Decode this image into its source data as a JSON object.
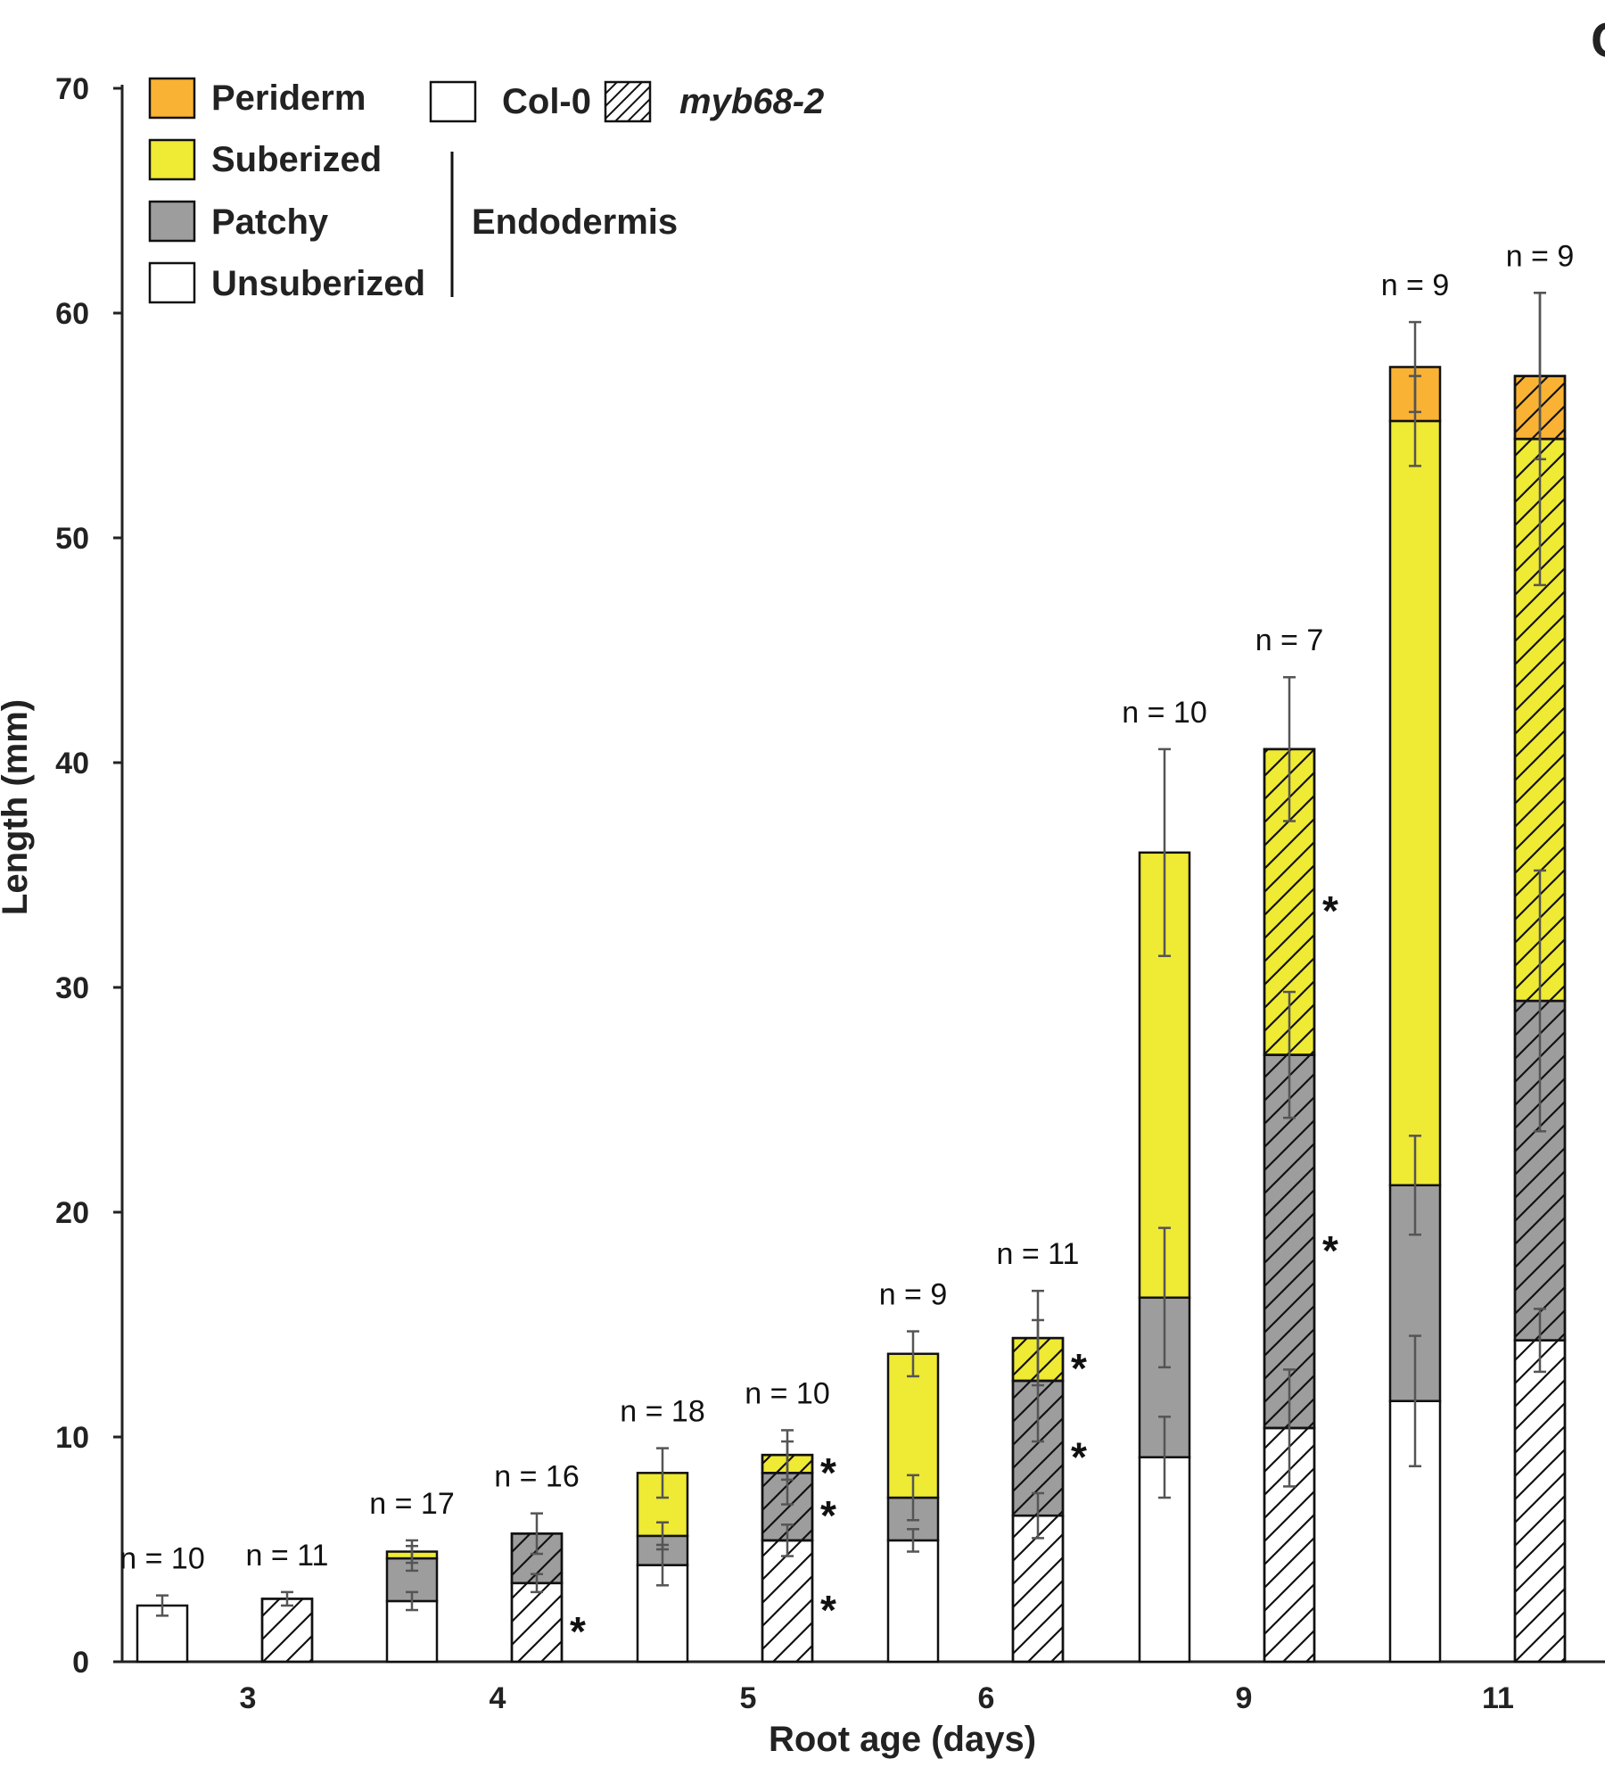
{
  "panel_label": "C",
  "colors": {
    "periderm": "#F9B233",
    "suberized": "#EFEA33",
    "patchy": "#9D9D9D",
    "unsuberized": "#FFFFFF",
    "stroke": "#111111",
    "errorbar": "#555555"
  },
  "legend": {
    "periderm": "Periderm",
    "suberized": "Suberized",
    "patchy": "Patchy",
    "unsuberized": "Unsuberized",
    "endodermis": "Endodermis",
    "col0": "Col-0",
    "myb68": "myb68-2"
  },
  "chart_data": {
    "type": "bar",
    "stacked": true,
    "title": "",
    "xlabel": "Root age (days)",
    "ylabel": "Length (mm)",
    "ylim": [
      0,
      70
    ],
    "yticks": [
      0,
      10,
      20,
      30,
      40,
      50,
      60,
      70
    ],
    "categories": [
      "3",
      "4",
      "5",
      "6",
      "9",
      "11"
    ],
    "layer_order": [
      "Unsuberized",
      "Patchy",
      "Suberized",
      "Periderm"
    ],
    "genotypes": [
      "Col-0",
      "myb68-2"
    ],
    "bars": [
      {
        "age": "3",
        "genotype": "Col-0",
        "n": "n = 10",
        "unsuberized": 2.5,
        "patchy": 0,
        "suberized": 0,
        "periderm": 0,
        "err": {
          "unsuberized": 0.45
        },
        "stars": []
      },
      {
        "age": "3",
        "genotype": "myb68-2",
        "n": "n = 11",
        "unsuberized": 2.8,
        "patchy": 0,
        "suberized": 0,
        "periderm": 0,
        "err": {
          "unsuberized": 0.3
        },
        "stars": []
      },
      {
        "age": "4",
        "genotype": "Col-0",
        "n": "n = 17",
        "unsuberized": 2.7,
        "patchy": 1.9,
        "suberized": 0.3,
        "periderm": 0,
        "err": {
          "unsuberized": 0.4,
          "patchy": 0.55,
          "suberized": 0.5
        },
        "stars": []
      },
      {
        "age": "4",
        "genotype": "myb68-2",
        "n": "n = 16",
        "unsuberized": 3.5,
        "patchy": 2.2,
        "suberized": 0,
        "periderm": 0,
        "err": {
          "unsuberized": 0.4,
          "patchy": 0.9
        },
        "stars": [
          "unsuberized"
        ]
      },
      {
        "age": "5",
        "genotype": "Col-0",
        "n": "n = 18",
        "unsuberized": 4.3,
        "patchy": 1.3,
        "suberized": 2.8,
        "periderm": 0,
        "err": {
          "unsuberized": 0.9,
          "patchy": 0.6,
          "suberized": 1.1
        },
        "stars": []
      },
      {
        "age": "5",
        "genotype": "myb68-2",
        "n": "n = 10",
        "unsuberized": 5.4,
        "patchy": 3.0,
        "suberized": 0.8,
        "periderm": 0,
        "err": {
          "unsuberized": 0.7,
          "patchy": 1.4,
          "suberized": 1.1
        },
        "stars": [
          "unsuberized",
          "patchy",
          "suberized"
        ]
      },
      {
        "age": "6",
        "genotype": "Col-0",
        "n": "n = 9",
        "unsuberized": 5.4,
        "patchy": 1.9,
        "suberized": 6.4,
        "periderm": 0,
        "err": {
          "unsuberized": 0.5,
          "patchy": 1.0,
          "suberized": 1.0
        },
        "stars": []
      },
      {
        "age": "6",
        "genotype": "myb68-2",
        "n": "n = 11",
        "unsuberized": 6.5,
        "patchy": 6.0,
        "suberized": 1.9,
        "periderm": 0,
        "err": {
          "unsuberized": 1.0,
          "patchy": 2.7,
          "suberized": 2.1
        },
        "stars": [
          "patchy",
          "suberized"
        ]
      },
      {
        "age": "9",
        "genotype": "Col-0",
        "n": "n = 10",
        "unsuberized": 9.1,
        "patchy": 7.1,
        "suberized": 19.8,
        "periderm": 0,
        "err": {
          "unsuberized": 1.8,
          "patchy": 3.1,
          "suberized": 4.6
        },
        "stars": []
      },
      {
        "age": "9",
        "genotype": "myb68-2",
        "n": "n = 7",
        "unsuberized": 10.4,
        "patchy": 16.6,
        "suberized": 13.6,
        "periderm": 0,
        "err": {
          "unsuberized": 2.6,
          "patchy": 2.8,
          "suberized": 3.2
        },
        "stars": [
          "patchy",
          "suberized"
        ]
      },
      {
        "age": "11",
        "genotype": "Col-0",
        "n": "n = 9",
        "unsuberized": 11.6,
        "patchy": 9.6,
        "suberized": 34.0,
        "periderm": 2.4,
        "err": {
          "unsuberized": 2.9,
          "patchy": 2.2,
          "suberized": 2.0,
          "periderm": 2.0
        },
        "stars": []
      },
      {
        "age": "11",
        "genotype": "myb68-2",
        "n": "n = 9",
        "unsuberized": 14.3,
        "patchy": 15.1,
        "suberized": 25.0,
        "periderm": 2.8,
        "err": {
          "unsuberized": 1.4,
          "patchy": 5.8,
          "suberized": 6.5,
          "periderm": 3.7
        },
        "stars": []
      }
    ],
    "star_symbol": "*",
    "legend_position": "top-left",
    "grid": false
  }
}
